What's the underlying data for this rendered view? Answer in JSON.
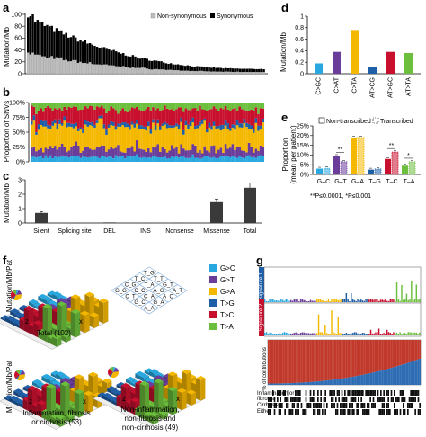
{
  "panels": {
    "a": {
      "letter": "a",
      "ylabel": "Mutation/Mb",
      "yticks": [
        "0",
        "20",
        "40",
        "60",
        "80",
        "100"
      ],
      "legend": {
        "nonsyn": "Non-synonymous",
        "syn": "Synonymous"
      }
    },
    "b": {
      "letter": "b",
      "ylabel": "Proportion of SNVs",
      "yticks": [
        "0%",
        "25%",
        "50%",
        "75%",
        "100%"
      ]
    },
    "c": {
      "letter": "c",
      "ylabel": "Mutation/Mb",
      "yticks": [
        "0",
        "1",
        "2",
        "3"
      ]
    },
    "d": {
      "letter": "d",
      "ylabel": "Mutation/Mb",
      "yticks": [
        "0",
        "0.2",
        "0.4",
        "0.6",
        "0.8",
        "1"
      ]
    },
    "e": {
      "letter": "e",
      "ylabel": "Proportion",
      "ylabel2": "(mean per patient)",
      "yticks": [
        "0%",
        "5%",
        "10%",
        "15%",
        "20%",
        "25%"
      ],
      "legend": {
        "nontrans": "Non-transcribed",
        "trans": "Transcribed"
      },
      "footnote": "**P≤0.0001, *P≤0.001"
    },
    "f": {
      "letter": "f",
      "ylabel": "Mutation/Mb/Pat",
      "total": "Total (102)",
      "infl": "Inflammation, fibrosis",
      "infl2": "or cirrhosis (53)",
      "noninfl": "Non-inflammation,",
      "noninfl2": "non-fibrosis and",
      "noninfl3": "non-cirrhosis (49)",
      "axis_z": "z",
      "axis_x": "x",
      "context_grid": [
        "T_G",
        "T_C",
        "C_G",
        "G_G",
        "T_T",
        "T_A",
        "C_C",
        "C_T",
        "G_T",
        "A_G",
        "C_A",
        "G_C",
        "A_T",
        "A_C",
        "G_A",
        "A_A"
      ],
      "legend": [
        {
          "label": "G>C",
          "color": "#29a8e0"
        },
        {
          "label": "G>T",
          "color": "#6a3d9a"
        },
        {
          "label": "G>A",
          "color": "#f5b800"
        },
        {
          "label": "T>G",
          "color": "#1f5fa8"
        },
        {
          "label": "T>C",
          "color": "#c8102e"
        },
        {
          "label": "T>A",
          "color": "#6cbf3c"
        }
      ]
    },
    "g": {
      "letter": "g",
      "rowlabel1": "Signature 1",
      "rowlabel2": "Signature 2",
      "ylabel_contrib": "% of contributions",
      "tracks": [
        "Inflammation or",
        "fibrosis",
        "Cirrhosis",
        "Either"
      ]
    }
  },
  "chart_data": [
    {
      "type": "bar",
      "panel": "c",
      "categories": [
        "Silent",
        "Splicing site",
        "DEL",
        "INS",
        "Nonsense",
        "Missense",
        "Total"
      ],
      "values": [
        0.7,
        0.02,
        0.04,
        0.02,
        0.03,
        1.45,
        2.45
      ],
      "errors": [
        0.08,
        0.01,
        0.01,
        0.01,
        0.01,
        0.22,
        0.32
      ],
      "ylabel": "Mutation/Mb",
      "ylim": [
        0,
        3
      ]
    },
    {
      "type": "bar",
      "panel": "d",
      "categories": [
        "C>GC",
        "C>AT",
        "C>TA",
        "AT>CG",
        "AT>GC",
        "AT>TA"
      ],
      "values": [
        0.18,
        0.38,
        0.76,
        0.12,
        0.38,
        0.36
      ],
      "colors": [
        "#29a8e0",
        "#6a3d9a",
        "#f5b800",
        "#1f5fa8",
        "#c8102e",
        "#6cbf3c"
      ],
      "ylabel": "Mutation/Mb",
      "ylim": [
        0,
        1
      ]
    },
    {
      "type": "bar",
      "panel": "e",
      "categories": [
        "G–C",
        "G–T",
        "G–A",
        "T–G",
        "T–C",
        "T–A"
      ],
      "series": [
        {
          "name": "Non-transcribed",
          "values": [
            3,
            9.5,
            19,
            2.5,
            8,
            4.5
          ]
        },
        {
          "name": "Transcribed",
          "values": [
            3.2,
            6.5,
            19,
            2.8,
            11.5,
            6.5
          ]
        }
      ],
      "colors": [
        "#29a8e0",
        "#6a3d9a",
        "#f5b800",
        "#1f5fa8",
        "#c8102e",
        "#6cbf3c"
      ],
      "significance": [
        "",
        "**",
        "",
        "",
        "**",
        "*"
      ],
      "ylim": [
        0,
        25
      ]
    }
  ]
}
